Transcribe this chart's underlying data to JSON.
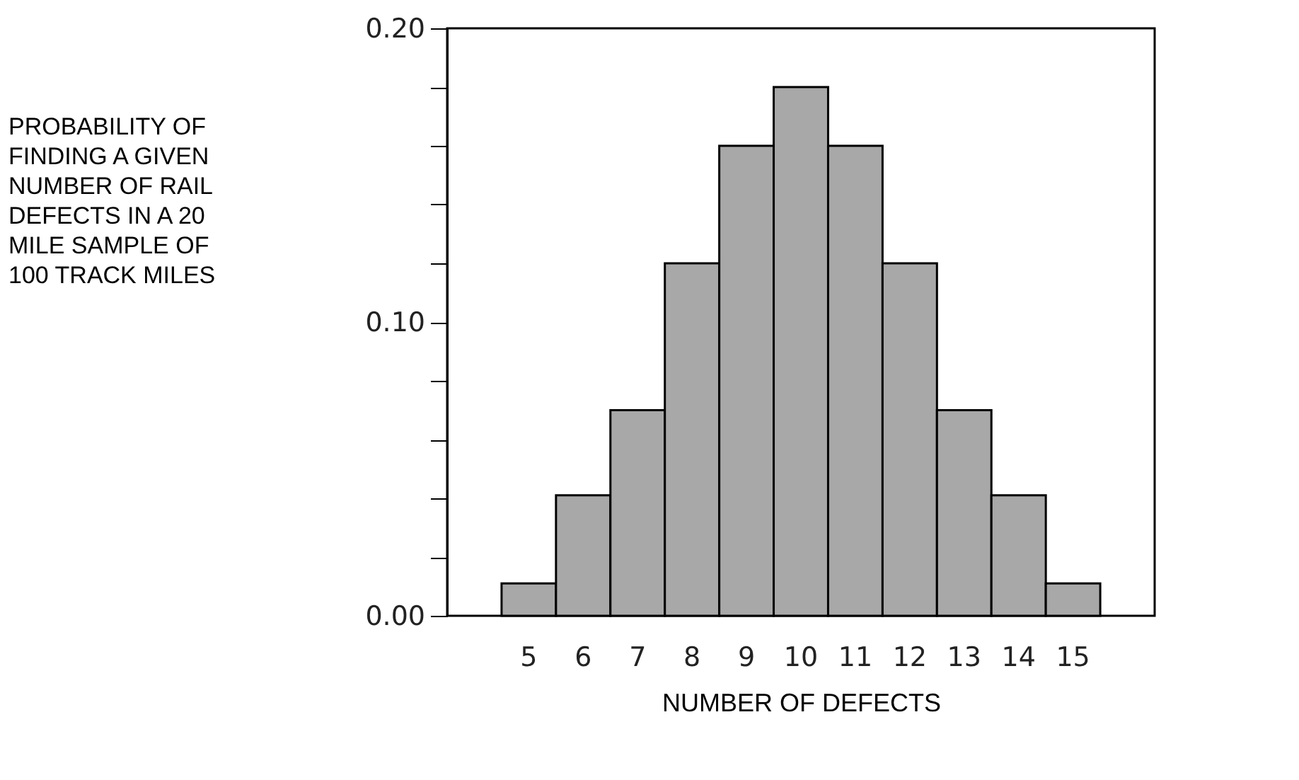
{
  "chart_data": {
    "type": "bar",
    "title": "PROBABILITY OF\nFINDING A GIVEN\nNUMBER OF RAIL\nDEFECTS IN A 20\nMILE SAMPLE OF\n100 TRACK MILES",
    "xlabel": "NUMBER OF DEFECTS",
    "categories": [
      "5",
      "6",
      "7",
      "8",
      "9",
      "10",
      "11",
      "12",
      "13",
      "14",
      "15"
    ],
    "values": [
      0.011,
      0.041,
      0.07,
      0.12,
      0.16,
      0.18,
      0.16,
      0.12,
      0.07,
      0.041,
      0.011
    ],
    "color": "#a8a8a8",
    "ylim": [
      0,
      0.2
    ],
    "yticks": [
      {
        "value": 0,
        "label": "0.00"
      },
      {
        "value": 0.02,
        "label": null
      },
      {
        "value": 0.04,
        "label": null
      },
      {
        "value": 0.06,
        "label": null
      },
      {
        "value": 0.08,
        "label": null
      },
      {
        "value": 0.1,
        "label": "0.10"
      },
      {
        "value": 0.12,
        "label": null
      },
      {
        "value": 0.14,
        "label": null
      },
      {
        "value": 0.16,
        "label": null
      },
      {
        "value": 0.18,
        "label": null
      },
      {
        "value": 0.2,
        "label": "0.20"
      }
    ],
    "grid": false
  }
}
